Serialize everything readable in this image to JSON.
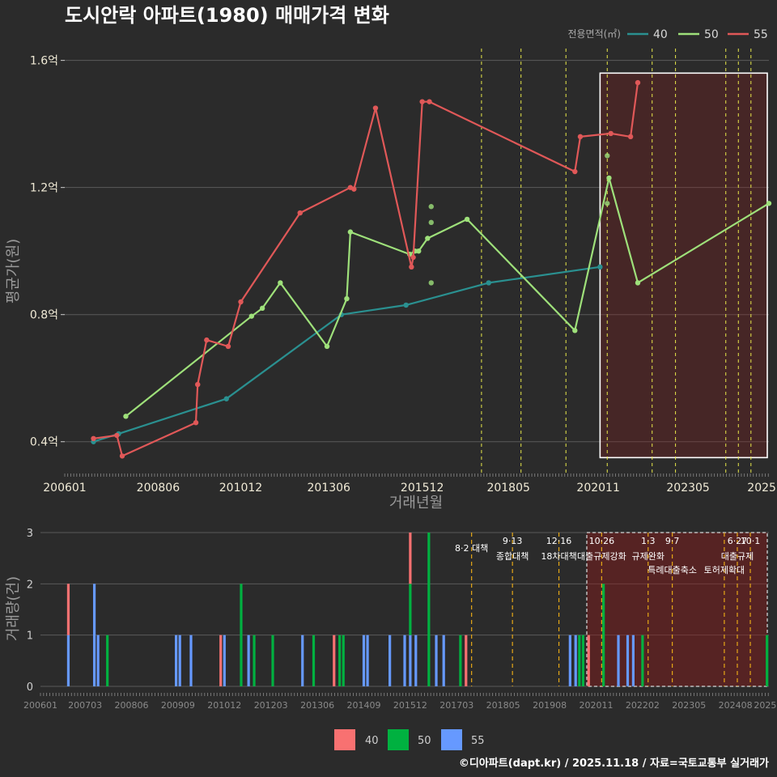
{
  "title": "도시안락 아파트(1980) 매매가격 변화",
  "footer": "©디아파트(dapt.kr) / 2025.11.18 / 자료=국토교통부 실거래가",
  "chart_data": [
    {
      "type": "line",
      "xlabel": "거래년월",
      "ylabel": "평균가(원)",
      "ylim": [
        0.3,
        1.65
      ],
      "yticks": [
        {
          "v": 0.4,
          "label": "0.4억"
        },
        {
          "v": 0.8,
          "label": "0.8억"
        },
        {
          "v": 1.2,
          "label": "1.2억"
        },
        {
          "v": 1.6,
          "label": "1.6억"
        }
      ],
      "xlim": [
        2006.0,
        2025.6
      ],
      "xticks": [
        {
          "t": 2006.0,
          "label": "200601"
        },
        {
          "t": 2008.6,
          "label": "200806"
        },
        {
          "t": 2010.9,
          "label": "201012"
        },
        {
          "t": 2013.35,
          "label": "201306"
        },
        {
          "t": 2015.95,
          "label": "201512"
        },
        {
          "t": 2018.35,
          "label": "201805"
        },
        {
          "t": 2020.85,
          "label": "202011"
        },
        {
          "t": 2023.35,
          "label": "202305"
        },
        {
          "t": 2025.4,
          "label": "2025"
        }
      ],
      "legend_title": "전용면적(㎡)",
      "series": [
        {
          "name": "40",
          "color": "#2a9090",
          "x": [
            2006.8,
            2007.5,
            2010.5,
            2013.7,
            2015.5,
            2017.8,
            2020.9
          ],
          "y": [
            0.4,
            0.425,
            0.535,
            0.8,
            0.83,
            0.9,
            0.95
          ]
        },
        {
          "name": "50",
          "color": "#9ee07a",
          "x": [
            2007.7,
            2011.2,
            2011.5,
            2012.0,
            2013.3,
            2013.85,
            2013.95,
            2015.6,
            2015.75,
            2015.85,
            2016.1,
            2017.2,
            2020.2,
            2021.15,
            2021.95,
            2025.6
          ],
          "y": [
            0.48,
            0.795,
            0.82,
            0.9,
            0.7,
            0.85,
            1.06,
            0.99,
            1.0,
            1.0,
            1.04,
            1.1,
            0.75,
            1.23,
            0.9,
            1.15
          ]
        },
        {
          "name": "55",
          "color": "#e05858",
          "x": [
            2006.8,
            2007.45,
            2007.6,
            2009.65,
            2009.7,
            2009.95,
            2010.55,
            2010.9,
            2012.55,
            2013.95,
            2014.05,
            2014.65,
            2015.65,
            2015.7,
            2015.95,
            2016.15,
            2020.2,
            2020.35,
            2021.2,
            2021.75,
            2021.95
          ],
          "y": [
            0.41,
            0.42,
            0.355,
            0.46,
            0.58,
            0.72,
            0.7,
            0.84,
            1.12,
            1.2,
            1.195,
            1.45,
            0.95,
            0.98,
            1.47,
            1.47,
            1.25,
            1.36,
            1.37,
            1.36,
            1.53
          ]
        }
      ],
      "extra_points": [
        {
          "series": "50",
          "x": 2016.2,
          "y": 1.14
        },
        {
          "series": "50",
          "x": 2016.2,
          "y": 1.09
        },
        {
          "series": "50",
          "x": 2016.2,
          "y": 0.9
        },
        {
          "series": "50",
          "x": 2021.1,
          "y": 1.3
        },
        {
          "series": "50",
          "x": 2021.1,
          "y": 1.15
        }
      ],
      "event_lines": [
        2017.6,
        2018.7,
        2019.95,
        2021.1,
        2022.35,
        2023.0,
        2024.4,
        2024.75,
        2025.1
      ],
      "highlight": {
        "x_start": 2020.9,
        "x_end": 2025.6,
        "y_start": 0.35,
        "y_end": 1.56
      }
    },
    {
      "type": "bar",
      "ylabel": "거래량(건)",
      "ylim": [
        0,
        3
      ],
      "yticks": [
        0,
        1,
        2,
        3
      ],
      "xlim": [
        2006.0,
        2025.6
      ],
      "xticks": [
        {
          "t": 2006.0,
          "label": "200601"
        },
        {
          "t": 2007.2,
          "label": "200703"
        },
        {
          "t": 2008.45,
          "label": "200806"
        },
        {
          "t": 2009.7,
          "label": "200909"
        },
        {
          "t": 2010.95,
          "label": "201012"
        },
        {
          "t": 2012.2,
          "label": "201203"
        },
        {
          "t": 2013.45,
          "label": "201306"
        },
        {
          "t": 2014.7,
          "label": "201409"
        },
        {
          "t": 2015.95,
          "label": "201512"
        },
        {
          "t": 2017.2,
          "label": "201703"
        },
        {
          "t": 2018.45,
          "label": "201805"
        },
        {
          "t": 2019.7,
          "label": "201908"
        },
        {
          "t": 2020.95,
          "label": "202011"
        },
        {
          "t": 2022.2,
          "label": "202202"
        },
        {
          "t": 2023.45,
          "label": "202305"
        },
        {
          "t": 2024.7,
          "label": "202408"
        },
        {
          "t": 2025.5,
          "label": "2025"
        }
      ],
      "series": [
        {
          "name": "40",
          "color": "#f87171"
        },
        {
          "name": "50",
          "color": "#00b140"
        },
        {
          "name": "55",
          "color": "#6699ff"
        }
      ],
      "bars": [
        {
          "t": 2006.75,
          "stack": [
            {
              "s": "55",
              "v": 1
            },
            {
              "s": "40",
              "v": 1
            }
          ]
        },
        {
          "t": 2007.45,
          "stack": [
            {
              "s": "55",
              "v": 2
            }
          ]
        },
        {
          "t": 2007.55,
          "stack": [
            {
              "s": "55",
              "v": 1
            }
          ]
        },
        {
          "t": 2007.8,
          "stack": [
            {
              "s": "50",
              "v": 1
            }
          ]
        },
        {
          "t": 2009.65,
          "stack": [
            {
              "s": "55",
              "v": 1
            }
          ]
        },
        {
          "t": 2009.75,
          "stack": [
            {
              "s": "55",
              "v": 1
            }
          ]
        },
        {
          "t": 2010.05,
          "stack": [
            {
              "s": "55",
              "v": 1
            }
          ]
        },
        {
          "t": 2010.85,
          "stack": [
            {
              "s": "40",
              "v": 1
            }
          ]
        },
        {
          "t": 2010.95,
          "stack": [
            {
              "s": "55",
              "v": 1
            }
          ]
        },
        {
          "t": 2011.4,
          "stack": [
            {
              "s": "50",
              "v": 2
            }
          ]
        },
        {
          "t": 2011.6,
          "stack": [
            {
              "s": "55",
              "v": 1
            }
          ]
        },
        {
          "t": 2011.75,
          "stack": [
            {
              "s": "50",
              "v": 1
            }
          ]
        },
        {
          "t": 2012.25,
          "stack": [
            {
              "s": "50",
              "v": 1
            }
          ]
        },
        {
          "t": 2013.05,
          "stack": [
            {
              "s": "55",
              "v": 1
            }
          ]
        },
        {
          "t": 2013.35,
          "stack": [
            {
              "s": "50",
              "v": 1
            }
          ]
        },
        {
          "t": 2013.9,
          "stack": [
            {
              "s": "40",
              "v": 1
            }
          ]
        },
        {
          "t": 2014.05,
          "stack": [
            {
              "s": "50",
              "v": 1
            }
          ]
        },
        {
          "t": 2014.15,
          "stack": [
            {
              "s": "50",
              "v": 1
            }
          ]
        },
        {
          "t": 2014.7,
          "stack": [
            {
              "s": "55",
              "v": 1
            }
          ]
        },
        {
          "t": 2014.8,
          "stack": [
            {
              "s": "55",
              "v": 1
            }
          ]
        },
        {
          "t": 2015.4,
          "stack": [
            {
              "s": "55",
              "v": 1
            }
          ]
        },
        {
          "t": 2015.8,
          "stack": [
            {
              "s": "55",
              "v": 1
            }
          ]
        },
        {
          "t": 2015.95,
          "stack": [
            {
              "s": "55",
              "v": 1
            },
            {
              "s": "50",
              "v": 1
            },
            {
              "s": "40",
              "v": 1
            }
          ]
        },
        {
          "t": 2016.1,
          "stack": [
            {
              "s": "55",
              "v": 1
            }
          ]
        },
        {
          "t": 2016.45,
          "stack": [
            {
              "s": "50",
              "v": 3
            }
          ]
        },
        {
          "t": 2016.65,
          "stack": [
            {
              "s": "55",
              "v": 1
            }
          ]
        },
        {
          "t": 2016.85,
          "stack": [
            {
              "s": "55",
              "v": 1
            }
          ]
        },
        {
          "t": 2017.3,
          "stack": [
            {
              "s": "50",
              "v": 1
            }
          ]
        },
        {
          "t": 2017.45,
          "stack": [
            {
              "s": "40",
              "v": 1
            }
          ]
        },
        {
          "t": 2020.25,
          "stack": [
            {
              "s": "55",
              "v": 1
            }
          ]
        },
        {
          "t": 2020.4,
          "stack": [
            {
              "s": "55",
              "v": 1
            }
          ]
        },
        {
          "t": 2020.5,
          "stack": [
            {
              "s": "50",
              "v": 1
            }
          ]
        },
        {
          "t": 2020.6,
          "stack": [
            {
              "s": "50",
              "v": 1
            }
          ]
        },
        {
          "t": 2020.75,
          "stack": [
            {
              "s": "40",
              "v": 1
            }
          ]
        },
        {
          "t": 2021.15,
          "stack": [
            {
              "s": "50",
              "v": 2
            }
          ]
        },
        {
          "t": 2021.55,
          "stack": [
            {
              "s": "55",
              "v": 1
            }
          ]
        },
        {
          "t": 2021.8,
          "stack": [
            {
              "s": "55",
              "v": 1
            }
          ]
        },
        {
          "t": 2021.95,
          "stack": [
            {
              "s": "55",
              "v": 1
            }
          ]
        },
        {
          "t": 2022.2,
          "stack": [
            {
              "s": "50",
              "v": 1
            }
          ]
        },
        {
          "t": 2025.55,
          "stack": [
            {
              "s": "50",
              "v": 1
            }
          ]
        }
      ],
      "events": [
        {
          "t": 2017.6,
          "date": "",
          "name": "8·2 대책"
        },
        {
          "t": 2018.7,
          "date": "9·13",
          "name": "종합대책"
        },
        {
          "t": 2019.95,
          "date": "12·16",
          "name": "18차대책"
        },
        {
          "t": 2021.1,
          "date": "10·26",
          "name": "대출규제강화"
        },
        {
          "t": 2022.35,
          "date": "1·3",
          "name": "규제완화"
        },
        {
          "t": 2023.0,
          "date": "9·7",
          "name": "특례대출축소"
        },
        {
          "t": 2024.4,
          "date": "",
          "name": "토허제확대"
        },
        {
          "t": 2024.75,
          "date": "6·27",
          "name": "대출규제"
        },
        {
          "t": 2025.1,
          "date": "10·1",
          "name": ""
        }
      ],
      "highlight": {
        "x_start": 2020.7,
        "x_end": 2025.6
      }
    }
  ]
}
